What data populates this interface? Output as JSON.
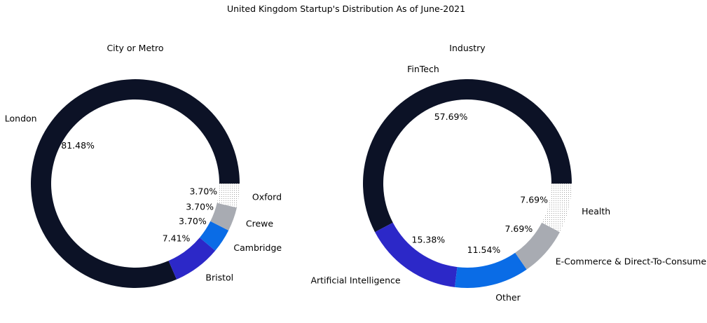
{
  "figure": {
    "title": "United Kingdom Startup's Distribution As of June-2021"
  },
  "colors": {
    "navy": "#0c1226",
    "indigo": "#2c28c8",
    "blue": "#0a6ce6",
    "gray": "#a8abb2",
    "dotted": "#9a9a9a"
  },
  "chart_data": [
    {
      "type": "pie",
      "variant": "donut",
      "title": "City or Metro",
      "start_angle_deg": 0,
      "direction": "counterclockwise",
      "slices": [
        {
          "label": "London",
          "value": 81.48,
          "pct_label": "81.48%",
          "color": "#0c1226",
          "pattern": "solid"
        },
        {
          "label": "Bristol",
          "value": 7.41,
          "pct_label": "7.41%",
          "color": "#2c28c8",
          "pattern": "solid"
        },
        {
          "label": "Cambridge",
          "value": 3.7,
          "pct_label": "3.70%",
          "color": "#0a6ce6",
          "pattern": "solid"
        },
        {
          "label": "Crewe",
          "value": 3.7,
          "pct_label": "3.70%",
          "color": "#a8abb2",
          "pattern": "solid"
        },
        {
          "label": "Oxford",
          "value": 3.7,
          "pct_label": "3.70%",
          "color": "#ffffff",
          "pattern": "dotted"
        }
      ]
    },
    {
      "type": "pie",
      "variant": "donut",
      "title": "Industry",
      "start_angle_deg": 0,
      "direction": "counterclockwise",
      "slices": [
        {
          "label": "FinTech",
          "value": 57.69,
          "pct_label": "57.69%",
          "color": "#0c1226",
          "pattern": "solid"
        },
        {
          "label": "Artificial Intelligence",
          "value": 15.38,
          "pct_label": "15.38%",
          "color": "#2c28c8",
          "pattern": "solid"
        },
        {
          "label": "Other",
          "value": 11.54,
          "pct_label": "11.54%",
          "color": "#0a6ce6",
          "pattern": "solid"
        },
        {
          "label": "E-Commerce & Direct-To-Consumer",
          "value": 7.69,
          "pct_label": "7.69%",
          "color": "#a8abb2",
          "pattern": "solid"
        },
        {
          "label": "Health",
          "value": 7.69,
          "pct_label": "7.69%",
          "color": "#ffffff",
          "pattern": "dotted"
        }
      ]
    }
  ]
}
